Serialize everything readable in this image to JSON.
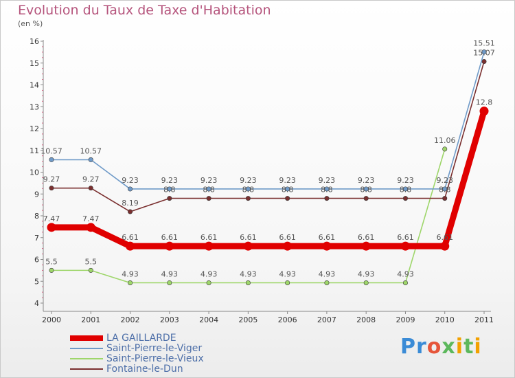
{
  "header": {
    "title": "Evolution du Taux de Taxe d'Habitation",
    "subtitle": "(en %)"
  },
  "brand": {
    "text": "Proxiti",
    "colors": [
      "#3a8bd6",
      "#e6553a",
      "#f2a100",
      "#5cb85c"
    ]
  },
  "chart_data": {
    "type": "line",
    "title": "Evolution du Taux de Taxe d'Habitation",
    "subtitle": "(en %)",
    "xlabel": "",
    "ylabel": "",
    "x": [
      "2000",
      "2001",
      "2002",
      "2003",
      "2004",
      "2005",
      "2006",
      "2007",
      "2008",
      "2009",
      "2010",
      "2011"
    ],
    "ylim": [
      4,
      16
    ],
    "yticks": [
      4,
      5,
      6,
      7,
      8,
      9,
      10,
      11,
      12,
      13,
      14,
      15,
      16
    ],
    "grid": false,
    "legend_position": "bottom-left",
    "series": [
      {
        "name": "LA GAILLARDE",
        "color": "#e00000",
        "values": [
          7.47,
          7.47,
          6.61,
          6.61,
          6.61,
          6.61,
          6.61,
          6.61,
          6.61,
          6.61,
          6.61,
          12.8
        ],
        "labels": [
          "7.47",
          "7.47",
          "6.61",
          "6.61",
          "6.61",
          "6.61",
          "6.61",
          "6.61",
          "6.61",
          "6.61",
          "6.61",
          "12.8"
        ]
      },
      {
        "name": "Saint-Pierre-le-Viger",
        "color": "#6f9ac8",
        "values": [
          10.57,
          10.57,
          9.23,
          9.23,
          9.23,
          9.23,
          9.23,
          9.23,
          9.23,
          9.23,
          9.23,
          15.51
        ],
        "labels": [
          "10.57",
          "10.57",
          "9.23",
          "9.23",
          "9.23",
          "9.23",
          "9.23",
          "9.23",
          "9.23",
          "9.23",
          "9.23",
          "15.51"
        ]
      },
      {
        "name": "Saint-Pierre-le-Vieux",
        "color": "#9ed66a",
        "values": [
          5.5,
          5.5,
          4.93,
          4.93,
          4.93,
          4.93,
          4.93,
          4.93,
          4.93,
          4.93,
          11.06,
          null
        ],
        "labels": [
          "5.5",
          "5.5",
          "4.93",
          "4.93",
          "4.93",
          "4.93",
          "4.93",
          "4.93",
          "4.93",
          "4.93",
          "11.06",
          ""
        ]
      },
      {
        "name": "Fontaine-le-Dun",
        "color": "#7a2f2f",
        "values": [
          9.27,
          9.27,
          8.19,
          8.8,
          8.8,
          8.8,
          8.8,
          8.8,
          8.8,
          8.8,
          8.8,
          15.07
        ],
        "labels": [
          "9.27",
          "9.27",
          "8.19",
          "8.8",
          "8.8",
          "8.8",
          "8.8",
          "8.8",
          "8.8",
          "8.8",
          "8.8",
          "15.07"
        ]
      }
    ]
  }
}
